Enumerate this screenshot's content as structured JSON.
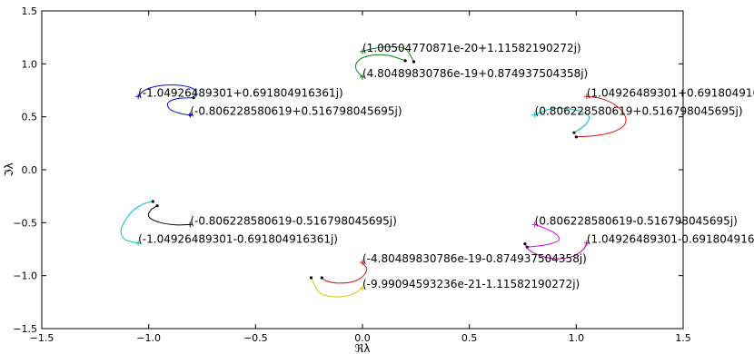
{
  "chart_data": {
    "type": "line",
    "title": "",
    "xlabel": "ℜλ",
    "ylabel": "ℑλ",
    "xlim": [
      -1.5,
      1.5
    ],
    "ylim": [
      -1.5,
      1.5
    ],
    "xticks": [
      -1.5,
      -1.0,
      -0.5,
      0.0,
      0.5,
      1.0,
      1.5
    ],
    "yticks": [
      -1.5,
      -1.0,
      -0.5,
      0.0,
      0.5,
      1.0,
      1.5
    ],
    "xtick_labels": [
      "−1.5",
      "−1.0",
      "−0.5",
      "0.0",
      "0.5",
      "1.0",
      "1.5"
    ],
    "ytick_labels": [
      "−1.5",
      "−1.0",
      "−0.5",
      "0.0",
      "0.5",
      "1.0",
      "1.5"
    ],
    "grid": false,
    "series": [
      {
        "color": "#1010d0",
        "start": [
          -1.049,
          0.692
        ],
        "end": [
          -0.806,
          0.517
        ],
        "points": [
          [
            -1.049,
            0.692
          ],
          [
            -1.02,
            0.75
          ],
          [
            -0.96,
            0.79
          ],
          [
            -0.88,
            0.8
          ],
          [
            -0.81,
            0.78
          ],
          [
            -0.78,
            0.74
          ],
          [
            -0.79,
            0.68
          ]
        ]
      },
      {
        "color": "#1010d0",
        "start": [
          -0.806,
          0.517
        ],
        "end": [
          -0.79,
          0.68
        ],
        "points": [
          [
            -0.806,
            0.517
          ],
          [
            -0.85,
            0.53
          ],
          [
            -0.9,
            0.57
          ],
          [
            -0.91,
            0.63
          ],
          [
            -0.87,
            0.67
          ],
          [
            -0.79,
            0.68
          ]
        ]
      },
      {
        "color": "#108010",
        "start": [
          0.0,
          1.116
        ],
        "end": [
          0.24,
          1.02
        ],
        "points": [
          [
            0.0,
            1.116
          ],
          [
            0.04,
            1.14
          ],
          [
            0.12,
            1.16
          ],
          [
            0.2,
            1.14
          ],
          [
            0.24,
            1.02
          ]
        ]
      },
      {
        "color": "#108010",
        "start": [
          0.0,
          0.875
        ],
        "end": [
          0.2,
          1.03
        ],
        "points": [
          [
            0.0,
            0.875
          ],
          [
            -0.03,
            0.95
          ],
          [
            -0.02,
            1.03
          ],
          [
            0.04,
            1.08
          ],
          [
            0.12,
            1.08
          ],
          [
            0.2,
            1.03
          ]
        ]
      },
      {
        "color": "#00c0c0",
        "start": [
          0.806,
          0.517
        ],
        "end": [
          0.99,
          0.35
        ],
        "points": [
          [
            0.806,
            0.517
          ],
          [
            0.87,
            0.57
          ],
          [
            0.95,
            0.58
          ],
          [
            1.02,
            0.55
          ],
          [
            1.06,
            0.5
          ],
          [
            1.04,
            0.42
          ],
          [
            0.99,
            0.35
          ]
        ]
      },
      {
        "color": "#e01010",
        "start": [
          1.049,
          0.692
        ],
        "end": [
          1.0,
          0.31
        ],
        "points": [
          [
            1.049,
            0.692
          ],
          [
            1.12,
            0.67
          ],
          [
            1.19,
            0.6
          ],
          [
            1.23,
            0.5
          ],
          [
            1.22,
            0.41
          ],
          [
            1.16,
            0.35
          ],
          [
            1.08,
            0.32
          ],
          [
            1.0,
            0.31
          ]
        ]
      },
      {
        "color": "#00c0c0",
        "start": [
          -1.049,
          -0.692
        ],
        "end": [
          -0.98,
          -0.3
        ],
        "points": [
          [
            -1.049,
            -0.692
          ],
          [
            -1.11,
            -0.66
          ],
          [
            -1.13,
            -0.58
          ],
          [
            -1.11,
            -0.48
          ],
          [
            -1.07,
            -0.38
          ],
          [
            -1.02,
            -0.32
          ],
          [
            -0.98,
            -0.3
          ]
        ]
      },
      {
        "color": "#000000",
        "start": [
          -0.806,
          -0.517
        ],
        "end": [
          -0.96,
          -0.34
        ],
        "points": [
          [
            -0.806,
            -0.517
          ],
          [
            -0.88,
            -0.52
          ],
          [
            -0.96,
            -0.49
          ],
          [
            -1.0,
            -0.44
          ],
          [
            -0.99,
            -0.38
          ],
          [
            -0.96,
            -0.34
          ]
        ]
      },
      {
        "color": "#e000e0",
        "start": [
          0.806,
          -0.517
        ],
        "end": [
          0.77,
          -0.73
        ],
        "points": [
          [
            0.806,
            -0.517
          ],
          [
            0.85,
            -0.55
          ],
          [
            0.9,
            -0.6
          ],
          [
            0.92,
            -0.66
          ],
          [
            0.88,
            -0.7
          ],
          [
            0.82,
            -0.72
          ],
          [
            0.77,
            -0.73
          ]
        ]
      },
      {
        "color": "#b000b0",
        "start": [
          1.049,
          -0.692
        ],
        "end": [
          0.76,
          -0.7
        ],
        "points": [
          [
            1.049,
            -0.692
          ],
          [
            1.03,
            -0.76
          ],
          [
            0.98,
            -0.82
          ],
          [
            0.9,
            -0.84
          ],
          [
            0.83,
            -0.81
          ],
          [
            0.78,
            -0.76
          ],
          [
            0.76,
            -0.7
          ]
        ]
      },
      {
        "color": "#e01010",
        "start": [
          0.0,
          -0.875
        ],
        "end": [
          -0.19,
          -1.02
        ],
        "points": [
          [
            0.0,
            -0.875
          ],
          [
            0.02,
            -0.94
          ],
          [
            0.0,
            -1.01
          ],
          [
            -0.05,
            -1.06
          ],
          [
            -0.12,
            -1.07
          ],
          [
            -0.17,
            -1.05
          ],
          [
            -0.19,
            -1.02
          ]
        ]
      },
      {
        "color": "#c8c800",
        "start": [
          0.0,
          -1.116
        ],
        "end": [
          -0.24,
          -1.02
        ],
        "points": [
          [
            0.0,
            -1.116
          ],
          [
            -0.05,
            -1.18
          ],
          [
            -0.13,
            -1.2
          ],
          [
            -0.2,
            -1.16
          ],
          [
            -0.24,
            -1.02
          ]
        ]
      }
    ],
    "annotations": [
      {
        "text": "(1.00504770871e-20+1.11582190272j)",
        "x": 0.0,
        "y": 1.116
      },
      {
        "text": "(4.80489830786e-19+0.874937504358j)",
        "x": 0.0,
        "y": 0.875
      },
      {
        "text": "(-1.04926489301+0.691804916361j)",
        "x": -1.049,
        "y": 0.692
      },
      {
        "text": "(-0.806228580619+0.516798045695j)",
        "x": -0.806,
        "y": 0.517
      },
      {
        "text": "(1.04926489301+0.69180491636",
        "x": 1.049,
        "y": 0.692
      },
      {
        "text": "(0.806228580619+0.516798045695j)",
        "x": 0.806,
        "y": 0.517
      },
      {
        "text": "(-0.806228580619-0.516798045695j)",
        "x": -0.806,
        "y": -0.517
      },
      {
        "text": "(-1.04926489301-0.691804916361j)",
        "x": -1.049,
        "y": -0.692
      },
      {
        "text": "(0.806228580619-0.516798045695j)",
        "x": 0.806,
        "y": -0.517
      },
      {
        "text": "(1.04926489301-0.691804916361",
        "x": 1.049,
        "y": -0.692
      },
      {
        "text": "(-4.80489830786e-19-0.874937504358j)",
        "x": 0.0,
        "y": -0.875
      },
      {
        "text": "(-9.99094593236e-21-1.11582190272j)",
        "x": 0.0,
        "y": -1.116
      }
    ]
  }
}
